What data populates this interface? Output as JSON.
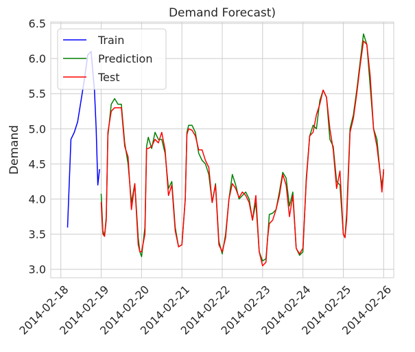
{
  "chart_data": {
    "type": "line",
    "title": "Demand Forecast)",
    "xlabel": "",
    "ylabel": "Demand",
    "xlim": [
      "2014-02-17 18:00",
      "2014-02-26 06:00"
    ],
    "ylim": [
      2.88,
      6.52
    ],
    "grid": true,
    "legend_position": "top-left",
    "x_ticks": [
      "2014-02-18",
      "2014-02-19",
      "2014-02-20",
      "2014-02-21",
      "2014-02-22",
      "2014-02-23",
      "2014-02-24",
      "2014-02-25",
      "2014-02-26"
    ],
    "y_ticks": [
      "3.0",
      "3.5",
      "4.0",
      "4.5",
      "5.0",
      "5.5",
      "6.0",
      "6.5"
    ],
    "series": [
      {
        "name": "Train",
        "color": "#0000ff",
        "x": [
          "2014-02-18 04:00",
          "2014-02-18 06:00",
          "2014-02-18 08:00",
          "2014-02-18 10:00",
          "2014-02-18 12:00",
          "2014-02-18 14:00",
          "2014-02-18 16:00",
          "2014-02-18 18:00",
          "2014-02-18 20:00",
          "2014-02-18 21:00",
          "2014-02-18 22:00",
          "2014-02-18 23:00"
        ],
        "y": [
          3.6,
          4.85,
          4.95,
          5.1,
          5.4,
          5.7,
          6.05,
          6.1,
          5.55,
          5.0,
          4.2,
          4.42
        ]
      },
      {
        "name": "Prediction",
        "color": "#008000",
        "x": [
          "2014-02-19 00:00",
          "2014-02-19 01:00",
          "2014-02-19 02:00",
          "2014-02-19 03:00",
          "2014-02-19 04:00",
          "2014-02-19 06:00",
          "2014-02-19 08:00",
          "2014-02-19 10:00",
          "2014-02-19 12:00",
          "2014-02-19 14:00",
          "2014-02-19 16:00",
          "2014-02-19 18:00",
          "2014-02-19 20:00",
          "2014-02-19 22:00",
          "2014-02-19 23:00",
          "2014-02-20 00:00",
          "2014-02-20 02:00",
          "2014-02-20 03:00",
          "2014-02-20 04:00",
          "2014-02-20 06:00",
          "2014-02-20 08:00",
          "2014-02-20 10:00",
          "2014-02-20 12:00",
          "2014-02-20 14:00",
          "2014-02-20 16:00",
          "2014-02-20 18:00",
          "2014-02-20 20:00",
          "2014-02-20 22:00",
          "2014-02-21 00:00",
          "2014-02-21 02:00",
          "2014-02-21 03:00",
          "2014-02-21 04:00",
          "2014-02-21 06:00",
          "2014-02-21 08:00",
          "2014-02-21 10:00",
          "2014-02-21 12:00",
          "2014-02-21 14:00",
          "2014-02-21 16:00",
          "2014-02-21 18:00",
          "2014-02-21 20:00",
          "2014-02-21 22:00",
          "2014-02-22 00:00",
          "2014-02-22 02:00",
          "2014-02-22 04:00",
          "2014-02-22 06:00",
          "2014-02-22 08:00",
          "2014-02-22 10:00",
          "2014-02-22 12:00",
          "2014-02-22 14:00",
          "2014-02-22 16:00",
          "2014-02-22 18:00",
          "2014-02-22 20:00",
          "2014-02-22 22:00",
          "2014-02-23 00:00",
          "2014-02-23 02:00",
          "2014-02-23 03:00",
          "2014-02-23 04:00",
          "2014-02-23 06:00",
          "2014-02-23 08:00",
          "2014-02-23 10:00",
          "2014-02-23 12:00",
          "2014-02-23 14:00",
          "2014-02-23 16:00",
          "2014-02-23 18:00",
          "2014-02-23 20:00",
          "2014-02-23 22:00",
          "2014-02-24 00:00",
          "2014-02-24 02:00",
          "2014-02-24 04:00",
          "2014-02-24 06:00",
          "2014-02-24 08:00",
          "2014-02-24 10:00",
          "2014-02-24 12:00",
          "2014-02-24 14:00",
          "2014-02-24 16:00",
          "2014-02-24 18:00",
          "2014-02-24 20:00",
          "2014-02-24 22:00",
          "2014-02-25 00:00",
          "2014-02-25 01:00",
          "2014-02-25 02:00",
          "2014-02-25 04:00",
          "2014-02-25 06:00",
          "2014-02-25 08:00",
          "2014-02-25 10:00",
          "2014-02-25 12:00",
          "2014-02-25 14:00",
          "2014-02-25 16:00",
          "2014-02-25 18:00",
          "2014-02-25 20:00",
          "2014-02-25 22:00",
          "2014-02-25 23:00",
          "2014-02-26 00:00"
        ],
        "y": [
          4.07,
          3.55,
          3.47,
          3.75,
          4.9,
          5.35,
          5.43,
          5.35,
          5.35,
          4.8,
          4.5,
          3.95,
          4.22,
          3.45,
          3.25,
          3.18,
          3.6,
          4.75,
          4.88,
          4.72,
          4.95,
          4.85,
          4.85,
          4.65,
          4.15,
          4.25,
          3.6,
          3.32,
          3.35,
          4.0,
          4.95,
          5.05,
          5.05,
          4.95,
          4.65,
          4.55,
          4.5,
          4.35,
          3.95,
          4.22,
          3.4,
          3.22,
          3.5,
          4.0,
          4.35,
          4.2,
          4.0,
          4.05,
          4.1,
          4.0,
          3.7,
          3.95,
          3.25,
          3.12,
          3.15,
          3.45,
          3.78,
          3.8,
          3.85,
          4.1,
          4.38,
          4.3,
          3.9,
          4.1,
          3.3,
          3.2,
          3.25,
          4.3,
          4.9,
          5.05,
          5.0,
          5.4,
          5.55,
          5.45,
          4.85,
          4.75,
          4.25,
          4.2,
          3.5,
          3.45,
          3.8,
          5.0,
          5.2,
          5.55,
          5.95,
          6.35,
          6.2,
          5.6,
          5.0,
          4.85,
          4.35,
          4.2,
          4.38
        ]
      },
      {
        "name": "Test",
        "color": "#ff0000",
        "x": [
          "2014-02-19 00:00",
          "2014-02-19 01:00",
          "2014-02-19 02:00",
          "2014-02-19 03:00",
          "2014-02-19 04:00",
          "2014-02-19 06:00",
          "2014-02-19 08:00",
          "2014-02-19 10:00",
          "2014-02-19 12:00",
          "2014-02-19 14:00",
          "2014-02-19 16:00",
          "2014-02-19 18:00",
          "2014-02-19 20:00",
          "2014-02-19 22:00",
          "2014-02-19 23:00",
          "2014-02-20 00:00",
          "2014-02-20 02:00",
          "2014-02-20 03:00",
          "2014-02-20 04:00",
          "2014-02-20 06:00",
          "2014-02-20 08:00",
          "2014-02-20 10:00",
          "2014-02-20 12:00",
          "2014-02-20 14:00",
          "2014-02-20 16:00",
          "2014-02-20 18:00",
          "2014-02-20 20:00",
          "2014-02-20 22:00",
          "2014-02-21 00:00",
          "2014-02-21 02:00",
          "2014-02-21 03:00",
          "2014-02-21 04:00",
          "2014-02-21 06:00",
          "2014-02-21 08:00",
          "2014-02-21 10:00",
          "2014-02-21 12:00",
          "2014-02-21 14:00",
          "2014-02-21 16:00",
          "2014-02-21 18:00",
          "2014-02-21 20:00",
          "2014-02-21 22:00",
          "2014-02-22 00:00",
          "2014-02-22 02:00",
          "2014-02-22 04:00",
          "2014-02-22 06:00",
          "2014-02-22 08:00",
          "2014-02-22 10:00",
          "2014-02-22 12:00",
          "2014-02-22 14:00",
          "2014-02-22 16:00",
          "2014-02-22 18:00",
          "2014-02-22 20:00",
          "2014-02-22 22:00",
          "2014-02-23 00:00",
          "2014-02-23 02:00",
          "2014-02-23 03:00",
          "2014-02-23 04:00",
          "2014-02-23 06:00",
          "2014-02-23 08:00",
          "2014-02-23 10:00",
          "2014-02-23 12:00",
          "2014-02-23 14:00",
          "2014-02-23 16:00",
          "2014-02-23 18:00",
          "2014-02-23 20:00",
          "2014-02-23 22:00",
          "2014-02-24 00:00",
          "2014-02-24 02:00",
          "2014-02-24 04:00",
          "2014-02-24 06:00",
          "2014-02-24 08:00",
          "2014-02-24 10:00",
          "2014-02-24 12:00",
          "2014-02-24 14:00",
          "2014-02-24 16:00",
          "2014-02-24 18:00",
          "2014-02-24 20:00",
          "2014-02-24 22:00",
          "2014-02-25 00:00",
          "2014-02-25 01:00",
          "2014-02-25 02:00",
          "2014-02-25 04:00",
          "2014-02-25 06:00",
          "2014-02-25 08:00",
          "2014-02-25 10:00",
          "2014-02-25 12:00",
          "2014-02-25 14:00",
          "2014-02-25 16:00",
          "2014-02-25 18:00",
          "2014-02-25 20:00",
          "2014-02-25 22:00",
          "2014-02-25 23:00",
          "2014-02-26 00:00"
        ],
        "y": [
          3.95,
          3.5,
          3.47,
          3.7,
          4.95,
          5.25,
          5.3,
          5.3,
          5.3,
          4.75,
          4.6,
          3.85,
          4.22,
          3.35,
          3.25,
          3.25,
          3.5,
          4.72,
          4.72,
          4.75,
          4.85,
          4.8,
          4.95,
          4.7,
          4.05,
          4.2,
          3.55,
          3.32,
          3.35,
          4.0,
          4.92,
          5.0,
          4.98,
          4.9,
          4.7,
          4.7,
          4.55,
          4.45,
          3.95,
          4.2,
          3.35,
          3.25,
          3.45,
          4.0,
          4.22,
          4.15,
          4.02,
          4.1,
          4.05,
          3.95,
          3.7,
          4.05,
          3.25,
          3.05,
          3.1,
          3.45,
          3.65,
          3.7,
          3.85,
          4.05,
          4.35,
          4.2,
          3.75,
          4.05,
          3.3,
          3.22,
          3.3,
          4.25,
          4.9,
          4.95,
          5.2,
          5.35,
          5.55,
          5.45,
          5.0,
          4.7,
          4.15,
          4.4,
          3.5,
          3.45,
          3.7,
          4.95,
          5.15,
          5.5,
          5.9,
          6.25,
          6.2,
          5.75,
          5.0,
          4.75,
          4.35,
          4.1,
          4.42
        ]
      }
    ]
  },
  "colors": {
    "grid": "#cccccc",
    "background": "#ffffff",
    "text": "#262626"
  }
}
